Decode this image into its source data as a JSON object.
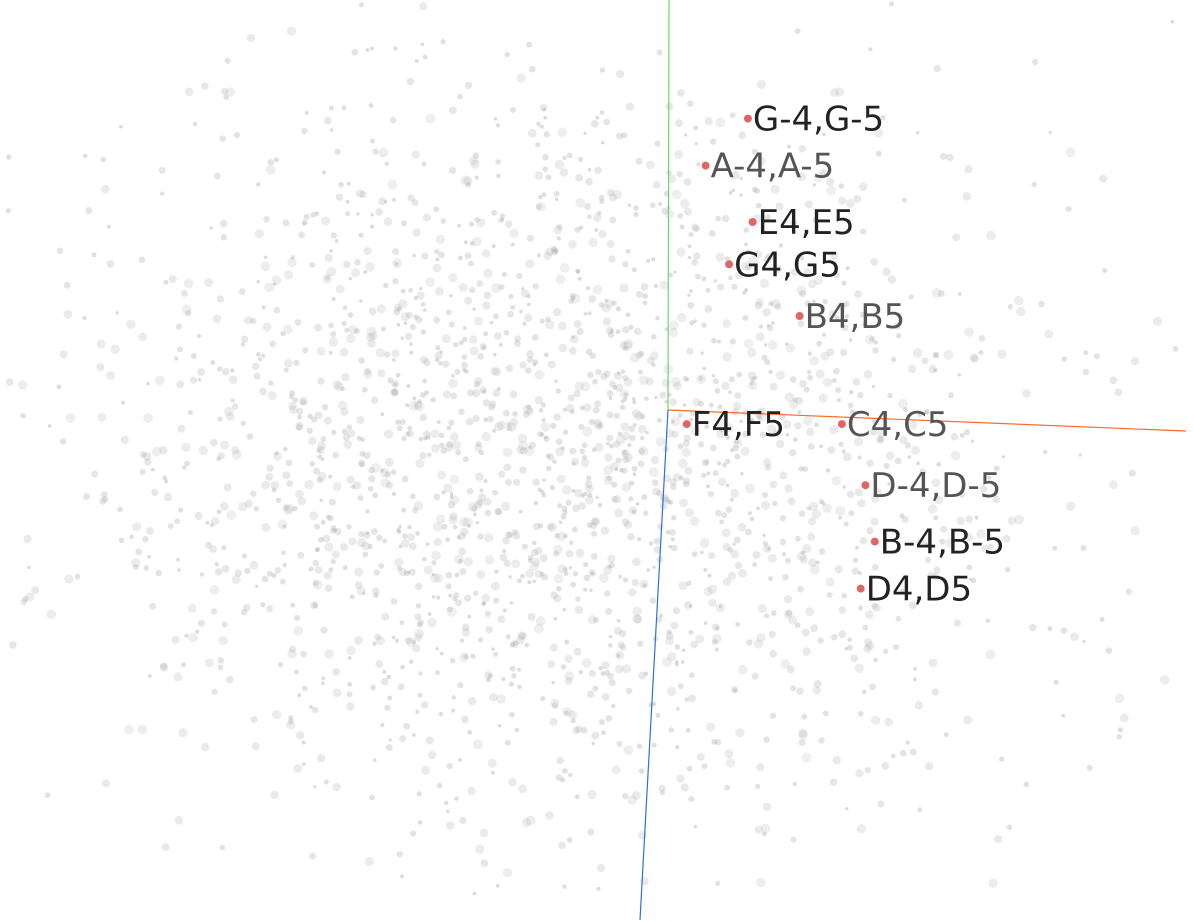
{
  "chart_data": {
    "type": "scatter",
    "dimensions": 3,
    "background_point_color": "#b5b5b5",
    "highlight_point_color": "#e06666",
    "axis_colors": {
      "x": "#ff6a2a",
      "y": "#6fd36f",
      "z": "#2f6fe0"
    },
    "highlighted_points": [
      {
        "label": "G-4,G-5",
        "u": 0.17,
        "v": 0.62,
        "label_color": "#222222"
      },
      {
        "label": "A-4,A-5",
        "u": 0.08,
        "v": 0.52,
        "label_color": "#555555"
      },
      {
        "label": "E4,E5",
        "u": 0.18,
        "v": 0.4,
        "label_color": "#222222"
      },
      {
        "label": "G4,G5",
        "u": 0.13,
        "v": 0.31,
        "label_color": "#222222"
      },
      {
        "label": "B4,B5",
        "u": 0.28,
        "v": 0.2,
        "label_color": "#555555"
      },
      {
        "label": "F4,F5",
        "u": 0.04,
        "v": -0.03,
        "label_color": "#222222"
      },
      {
        "label": "C4,C5",
        "u": 0.37,
        "v": -0.03,
        "label_color": "#555555"
      },
      {
        "label": "D-4,D-5",
        "u": 0.42,
        "v": -0.16,
        "label_color": "#555555"
      },
      {
        "label": "B-4,B-5",
        "u": 0.44,
        "v": -0.28,
        "label_color": "#222222"
      },
      {
        "label": "D4,D5",
        "u": 0.41,
        "v": -0.38,
        "label_color": "#222222"
      }
    ]
  }
}
